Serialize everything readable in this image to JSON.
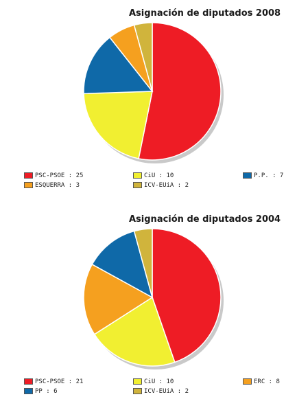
{
  "chart_data": [
    {
      "type": "pie",
      "title": "Asignación de diputados 2008",
      "series": [
        {
          "label": "PSC-PSOE : 25",
          "name": "PSC-PSOE",
          "value": 25,
          "color": "#ee1c25"
        },
        {
          "label": "CiU : 10",
          "name": "CiU",
          "value": 10,
          "color": "#f1ef31"
        },
        {
          "label": "P.P. : 7",
          "name": "P.P.",
          "value": 7,
          "color": "#0f69a8"
        },
        {
          "label": "ESQUERRA : 3",
          "name": "ESQUERRA",
          "value": 3,
          "color": "#f5a01f"
        },
        {
          "label": "ICV-EUiA : 2",
          "name": "ICV-EUiA",
          "value": 2,
          "color": "#d0b43c"
        }
      ],
      "legend_placement": "bottom"
    },
    {
      "type": "pie",
      "title": "Asignación de diputados 2004",
      "series": [
        {
          "label": "PSC-PSOE : 21",
          "name": "PSC-PSOE",
          "value": 21,
          "color": "#ee1c25"
        },
        {
          "label": "CiU : 10",
          "name": "CiU",
          "value": 10,
          "color": "#f1ef31"
        },
        {
          "label": "ERC : 8",
          "name": "ERC",
          "value": 8,
          "color": "#f5a01f"
        },
        {
          "label": "PP : 6",
          "name": "PP",
          "value": 6,
          "color": "#0f69a8"
        },
        {
          "label": "ICV-EUiA : 2",
          "name": "ICV-EUiA",
          "value": 2,
          "color": "#d0b43c"
        }
      ],
      "legend_placement": "bottom"
    }
  ]
}
